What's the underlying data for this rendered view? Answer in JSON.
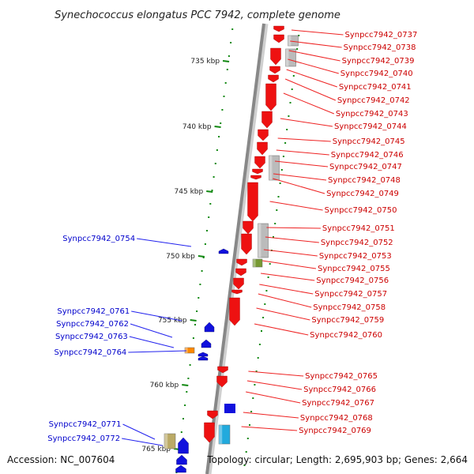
{
  "title": "Synechococcus elongatus PCC 7942, complete genome",
  "accession": "Accession: NC_007604",
  "topology": "Topology: circular; Length: 2,695,903 bp; Genes: 2,664",
  "colors": {
    "forward": "#ee1111",
    "reverse": "#1111dd",
    "backbone": "#888888",
    "tick": "#118811",
    "label_forward": "#cc0000",
    "label_reverse": "#0000cc",
    "gray_gene": "#bbbbbb",
    "olive_gene": "#779933",
    "orange_gene": "#ff8800",
    "khaki_gene": "#bbaa66",
    "cyan_gene": "#22aadd"
  },
  "kbp_markers": [
    "735 kbp",
    "740 kbp",
    "745 kbp",
    "750 kbp",
    "755 kbp",
    "760 kbp",
    "765 kbp"
  ],
  "right_labels": [
    "Synpcc7942_0737",
    "Synpcc7942_0738",
    "Synpcc7942_0739",
    "Synpcc7942_0740",
    "Synpcc7942_0741",
    "Synpcc7942_0742",
    "Synpcc7942_0743",
    "Synpcc7942_0744",
    "Synpcc7942_0745",
    "Synpcc7942_0746",
    "Synpcc7942_0747",
    "Synpcc7942_0748",
    "Synpcc7942_0749",
    "Synpcc7942_0750",
    "Synpcc7942_0751",
    "Synpcc7942_0752",
    "Synpcc7942_0753",
    "Synpcc7942_0755",
    "Synpcc7942_0756",
    "Synpcc7942_0757",
    "Synpcc7942_0758",
    "Synpcc7942_0759",
    "Synpcc7942_0760",
    "Synpcc7942_0765",
    "Synpcc7942_0766",
    "Synpcc7942_0767",
    "Synpcc7942_0768",
    "Synpcc7942_0769"
  ],
  "left_labels": [
    "Synpcc7942_0754",
    "Synpcc7942_0761",
    "Synpcc7942_0762",
    "Synpcc7942_0763",
    "Synpcc7942_0764",
    "Synpcc7942_0771",
    "Synpcc7942_0772"
  ]
}
